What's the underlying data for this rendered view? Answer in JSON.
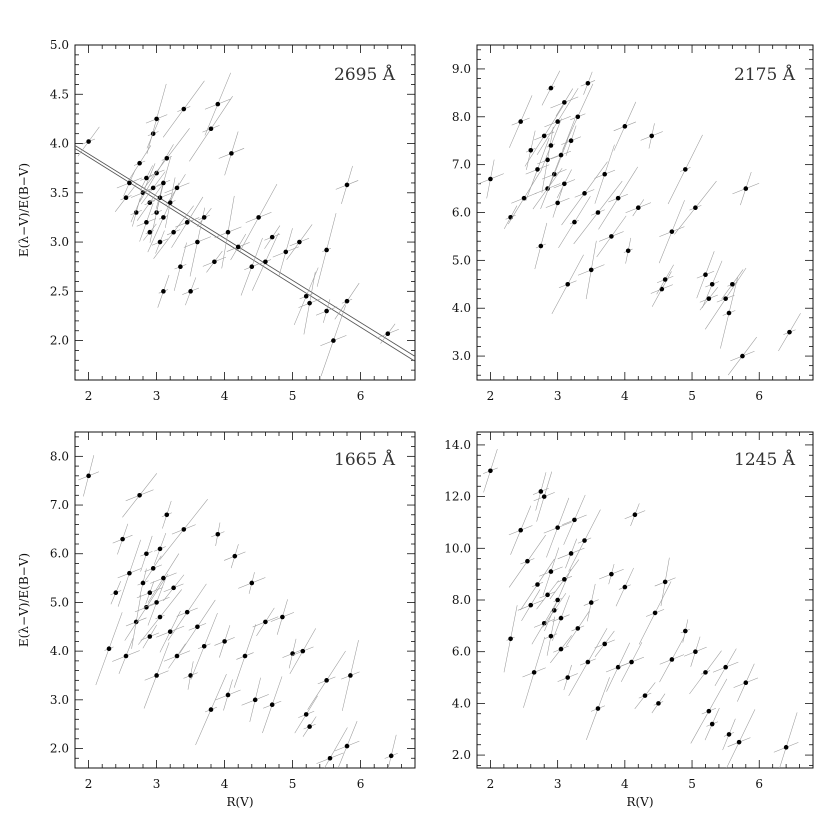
{
  "chart_data": [
    {
      "type": "scatter",
      "annotation": "2695 Å",
      "xlabel": "",
      "ylabel": "E(λ−V)/E(B−V)",
      "xlim": [
        1.8,
        6.8
      ],
      "ylim": [
        1.6,
        5.0
      ],
      "xticks": [
        2,
        3,
        4,
        5,
        6
      ],
      "xtick_labels": [
        "2",
        "3",
        "4",
        "5",
        "6"
      ],
      "yticks": [
        2.0,
        2.5,
        3.0,
        3.5,
        4.0,
        4.5,
        5.0
      ],
      "ytick_labels": [
        "2.0",
        "2.5",
        "3.0",
        "3.5",
        "4.0",
        "4.5",
        "5.0"
      ],
      "fit_lines": [
        {
          "x": [
            1.8,
            6.8
          ],
          "y": [
            3.98,
            1.84
          ]
        },
        {
          "x": [
            1.8,
            6.8
          ],
          "y": [
            3.95,
            1.79
          ]
        }
      ],
      "points": [
        {
          "x": 2.0,
          "y": 4.02
        },
        {
          "x": 2.55,
          "y": 3.45
        },
        {
          "x": 2.6,
          "y": 3.6
        },
        {
          "x": 2.7,
          "y": 3.3
        },
        {
          "x": 2.75,
          "y": 3.8
        },
        {
          "x": 2.8,
          "y": 3.5
        },
        {
          "x": 2.85,
          "y": 3.2
        },
        {
          "x": 2.85,
          "y": 3.65
        },
        {
          "x": 2.9,
          "y": 3.4
        },
        {
          "x": 2.9,
          "y": 3.1
        },
        {
          "x": 2.95,
          "y": 3.55
        },
        {
          "x": 2.95,
          "y": 4.1
        },
        {
          "x": 3.0,
          "y": 3.3
        },
        {
          "x": 3.0,
          "y": 3.7
        },
        {
          "x": 3.0,
          "y": 4.25
        },
        {
          "x": 3.05,
          "y": 3.0
        },
        {
          "x": 3.05,
          "y": 3.45
        },
        {
          "x": 3.1,
          "y": 3.6
        },
        {
          "x": 3.1,
          "y": 3.25
        },
        {
          "x": 3.1,
          "y": 2.5
        },
        {
          "x": 3.15,
          "y": 3.85
        },
        {
          "x": 3.2,
          "y": 3.4
        },
        {
          "x": 3.25,
          "y": 3.1
        },
        {
          "x": 3.3,
          "y": 3.55
        },
        {
          "x": 3.35,
          "y": 2.75
        },
        {
          "x": 3.4,
          "y": 4.35
        },
        {
          "x": 3.45,
          "y": 3.2
        },
        {
          "x": 3.5,
          "y": 2.5
        },
        {
          "x": 3.6,
          "y": 3.0
        },
        {
          "x": 3.7,
          "y": 3.25
        },
        {
          "x": 3.8,
          "y": 4.15
        },
        {
          "x": 3.9,
          "y": 4.4
        },
        {
          "x": 3.85,
          "y": 2.8
        },
        {
          "x": 4.05,
          "y": 3.1
        },
        {
          "x": 4.1,
          "y": 3.9
        },
        {
          "x": 4.2,
          "y": 2.95
        },
        {
          "x": 4.4,
          "y": 2.75
        },
        {
          "x": 4.5,
          "y": 3.25
        },
        {
          "x": 4.6,
          "y": 2.8
        },
        {
          "x": 4.7,
          "y": 3.05
        },
        {
          "x": 4.9,
          "y": 2.9
        },
        {
          "x": 5.1,
          "y": 3.0
        },
        {
          "x": 5.2,
          "y": 2.45
        },
        {
          "x": 5.25,
          "y": 2.38
        },
        {
          "x": 5.5,
          "y": 2.3
        },
        {
          "x": 5.5,
          "y": 2.92
        },
        {
          "x": 5.6,
          "y": 2.0
        },
        {
          "x": 5.8,
          "y": 2.4
        },
        {
          "x": 5.8,
          "y": 3.58
        },
        {
          "x": 6.4,
          "y": 2.07
        }
      ]
    },
    {
      "type": "scatter",
      "annotation": "2175 Å",
      "xlabel": "",
      "ylabel": "",
      "xlim": [
        1.8,
        6.8
      ],
      "ylim": [
        2.5,
        9.5
      ],
      "xticks": [
        2,
        3,
        4,
        5,
        6
      ],
      "xtick_labels": [
        "2",
        "3",
        "4",
        "5",
        "6"
      ],
      "yticks": [
        3.0,
        4.0,
        5.0,
        6.0,
        7.0,
        8.0,
        9.0
      ],
      "ytick_labels": [
        "3.0",
        "4.0",
        "5.0",
        "6.0",
        "7.0",
        "8.0",
        "9.0"
      ],
      "fit_lines": [],
      "points": [
        {
          "x": 2.0,
          "y": 6.7
        },
        {
          "x": 2.3,
          "y": 5.9
        },
        {
          "x": 2.45,
          "y": 7.9
        },
        {
          "x": 2.5,
          "y": 6.3
        },
        {
          "x": 2.6,
          "y": 7.3
        },
        {
          "x": 2.7,
          "y": 6.9
        },
        {
          "x": 2.75,
          "y": 5.3
        },
        {
          "x": 2.8,
          "y": 7.6
        },
        {
          "x": 2.85,
          "y": 7.1
        },
        {
          "x": 2.85,
          "y": 6.5
        },
        {
          "x": 2.9,
          "y": 8.6
        },
        {
          "x": 2.9,
          "y": 7.4
        },
        {
          "x": 2.95,
          "y": 6.8
        },
        {
          "x": 3.0,
          "y": 7.9
        },
        {
          "x": 3.0,
          "y": 6.2
        },
        {
          "x": 3.05,
          "y": 7.2
        },
        {
          "x": 3.1,
          "y": 8.3
        },
        {
          "x": 3.1,
          "y": 6.6
        },
        {
          "x": 3.15,
          "y": 4.5
        },
        {
          "x": 3.2,
          "y": 7.5
        },
        {
          "x": 3.25,
          "y": 5.8
        },
        {
          "x": 3.3,
          "y": 8.0
        },
        {
          "x": 3.4,
          "y": 6.4
        },
        {
          "x": 3.45,
          "y": 8.7
        },
        {
          "x": 3.5,
          "y": 4.8
        },
        {
          "x": 3.6,
          "y": 6.0
        },
        {
          "x": 3.7,
          "y": 6.8
        },
        {
          "x": 3.8,
          "y": 5.5
        },
        {
          "x": 3.9,
          "y": 6.3
        },
        {
          "x": 4.0,
          "y": 7.8
        },
        {
          "x": 4.05,
          "y": 5.2
        },
        {
          "x": 4.2,
          "y": 6.1
        },
        {
          "x": 4.4,
          "y": 7.6
        },
        {
          "x": 4.55,
          "y": 4.4
        },
        {
          "x": 4.6,
          "y": 4.6
        },
        {
          "x": 4.7,
          "y": 5.6
        },
        {
          "x": 4.9,
          "y": 6.9
        },
        {
          "x": 5.05,
          "y": 6.1
        },
        {
          "x": 5.2,
          "y": 4.7
        },
        {
          "x": 5.25,
          "y": 4.2
        },
        {
          "x": 5.3,
          "y": 4.5
        },
        {
          "x": 5.5,
          "y": 4.2
        },
        {
          "x": 5.55,
          "y": 3.9
        },
        {
          "x": 5.6,
          "y": 4.5
        },
        {
          "x": 5.75,
          "y": 3.0
        },
        {
          "x": 5.8,
          "y": 6.5
        },
        {
          "x": 6.45,
          "y": 3.5
        }
      ]
    },
    {
      "type": "scatter",
      "annotation": "1665 Å",
      "xlabel": "R(V)",
      "ylabel": "E(λ−V)/E(B−V)",
      "xlim": [
        1.8,
        6.8
      ],
      "ylim": [
        1.6,
        8.5
      ],
      "xticks": [
        2,
        3,
        4,
        5,
        6
      ],
      "xtick_labels": [
        "2",
        "3",
        "4",
        "5",
        "6"
      ],
      "yticks": [
        2.0,
        3.0,
        4.0,
        5.0,
        6.0,
        7.0,
        8.0
      ],
      "ytick_labels": [
        "2.0",
        "3.0",
        "4.0",
        "5.0",
        "6.0",
        "7.0",
        "8.0"
      ],
      "fit_lines": [],
      "points": [
        {
          "x": 2.0,
          "y": 7.6
        },
        {
          "x": 2.3,
          "y": 4.05
        },
        {
          "x": 2.4,
          "y": 5.2
        },
        {
          "x": 2.5,
          "y": 6.3
        },
        {
          "x": 2.55,
          "y": 3.9
        },
        {
          "x": 2.6,
          "y": 5.6
        },
        {
          "x": 2.7,
          "y": 4.6
        },
        {
          "x": 2.75,
          "y": 7.2
        },
        {
          "x": 2.8,
          "y": 5.4
        },
        {
          "x": 2.85,
          "y": 4.9
        },
        {
          "x": 2.85,
          "y": 6.0
        },
        {
          "x": 2.9,
          "y": 5.2
        },
        {
          "x": 2.9,
          "y": 4.3
        },
        {
          "x": 2.95,
          "y": 5.7
        },
        {
          "x": 3.0,
          "y": 5.0
        },
        {
          "x": 3.0,
          "y": 3.5
        },
        {
          "x": 3.05,
          "y": 6.1
        },
        {
          "x": 3.05,
          "y": 4.7
        },
        {
          "x": 3.1,
          "y": 5.5
        },
        {
          "x": 3.15,
          "y": 6.8
        },
        {
          "x": 3.2,
          "y": 4.4
        },
        {
          "x": 3.25,
          "y": 5.3
        },
        {
          "x": 3.3,
          "y": 3.9
        },
        {
          "x": 3.4,
          "y": 6.5
        },
        {
          "x": 3.45,
          "y": 4.8
        },
        {
          "x": 3.5,
          "y": 3.5
        },
        {
          "x": 3.6,
          "y": 4.5
        },
        {
          "x": 3.7,
          "y": 4.1
        },
        {
          "x": 3.8,
          "y": 2.8
        },
        {
          "x": 3.9,
          "y": 6.4
        },
        {
          "x": 4.0,
          "y": 4.2
        },
        {
          "x": 4.05,
          "y": 3.1
        },
        {
          "x": 4.15,
          "y": 5.95
        },
        {
          "x": 4.3,
          "y": 3.9
        },
        {
          "x": 4.4,
          "y": 5.4
        },
        {
          "x": 4.45,
          "y": 3.0
        },
        {
          "x": 4.6,
          "y": 4.6
        },
        {
          "x": 4.7,
          "y": 2.9
        },
        {
          "x": 4.85,
          "y": 4.7
        },
        {
          "x": 5.0,
          "y": 3.95
        },
        {
          "x": 5.15,
          "y": 4.0
        },
        {
          "x": 5.2,
          "y": 2.7
        },
        {
          "x": 5.25,
          "y": 2.45
        },
        {
          "x": 5.5,
          "y": 3.4
        },
        {
          "x": 5.55,
          "y": 1.8
        },
        {
          "x": 5.8,
          "y": 2.05
        },
        {
          "x": 5.85,
          "y": 3.5
        },
        {
          "x": 6.45,
          "y": 1.85
        }
      ]
    },
    {
      "type": "scatter",
      "annotation": "1245 Å",
      "xlabel": "R(V)",
      "ylabel": "",
      "xlim": [
        1.8,
        6.8
      ],
      "ylim": [
        1.5,
        14.5
      ],
      "xticks": [
        2,
        3,
        4,
        5,
        6
      ],
      "xtick_labels": [
        "2",
        "3",
        "4",
        "5",
        "6"
      ],
      "yticks": [
        2.0,
        4.0,
        6.0,
        8.0,
        10.0,
        12.0,
        14.0
      ],
      "ytick_labels": [
        "2.0",
        "4.0",
        "6.0",
        "8.0",
        "10.0",
        "12.0",
        "14.0"
      ],
      "fit_lines": [],
      "points": [
        {
          "x": 2.0,
          "y": 13.0
        },
        {
          "x": 2.3,
          "y": 6.5
        },
        {
          "x": 2.45,
          "y": 10.7
        },
        {
          "x": 2.55,
          "y": 9.5
        },
        {
          "x": 2.6,
          "y": 7.8
        },
        {
          "x": 2.65,
          "y": 5.2
        },
        {
          "x": 2.7,
          "y": 8.6
        },
        {
          "x": 2.75,
          "y": 12.2
        },
        {
          "x": 2.8,
          "y": 12.0
        },
        {
          "x": 2.8,
          "y": 7.1
        },
        {
          "x": 2.85,
          "y": 8.2
        },
        {
          "x": 2.9,
          "y": 9.1
        },
        {
          "x": 2.9,
          "y": 6.6
        },
        {
          "x": 2.95,
          "y": 7.6
        },
        {
          "x": 3.0,
          "y": 8.0
        },
        {
          "x": 3.0,
          "y": 10.8
        },
        {
          "x": 3.05,
          "y": 6.1
        },
        {
          "x": 3.05,
          "y": 7.3
        },
        {
          "x": 3.1,
          "y": 8.8
        },
        {
          "x": 3.15,
          "y": 5.0
        },
        {
          "x": 3.2,
          "y": 9.8
        },
        {
          "x": 3.25,
          "y": 11.1
        },
        {
          "x": 3.3,
          "y": 6.9
        },
        {
          "x": 3.4,
          "y": 10.3
        },
        {
          "x": 3.45,
          "y": 5.6
        },
        {
          "x": 3.5,
          "y": 7.9
        },
        {
          "x": 3.6,
          "y": 3.8
        },
        {
          "x": 3.7,
          "y": 6.3
        },
        {
          "x": 3.8,
          "y": 9.0
        },
        {
          "x": 3.9,
          "y": 5.4
        },
        {
          "x": 4.0,
          "y": 8.5
        },
        {
          "x": 4.1,
          "y": 5.6
        },
        {
          "x": 4.15,
          "y": 11.3
        },
        {
          "x": 4.3,
          "y": 4.3
        },
        {
          "x": 4.45,
          "y": 7.5
        },
        {
          "x": 4.5,
          "y": 4.0
        },
        {
          "x": 4.6,
          "y": 8.7
        },
        {
          "x": 4.7,
          "y": 5.7
        },
        {
          "x": 4.9,
          "y": 6.8
        },
        {
          "x": 5.05,
          "y": 6.0
        },
        {
          "x": 5.2,
          "y": 5.2
        },
        {
          "x": 5.25,
          "y": 3.7
        },
        {
          "x": 5.3,
          "y": 3.2
        },
        {
          "x": 5.5,
          "y": 5.4
        },
        {
          "x": 5.55,
          "y": 2.8
        },
        {
          "x": 5.7,
          "y": 2.5
        },
        {
          "x": 5.8,
          "y": 4.8
        },
        {
          "x": 6.4,
          "y": 2.3
        }
      ]
    }
  ]
}
